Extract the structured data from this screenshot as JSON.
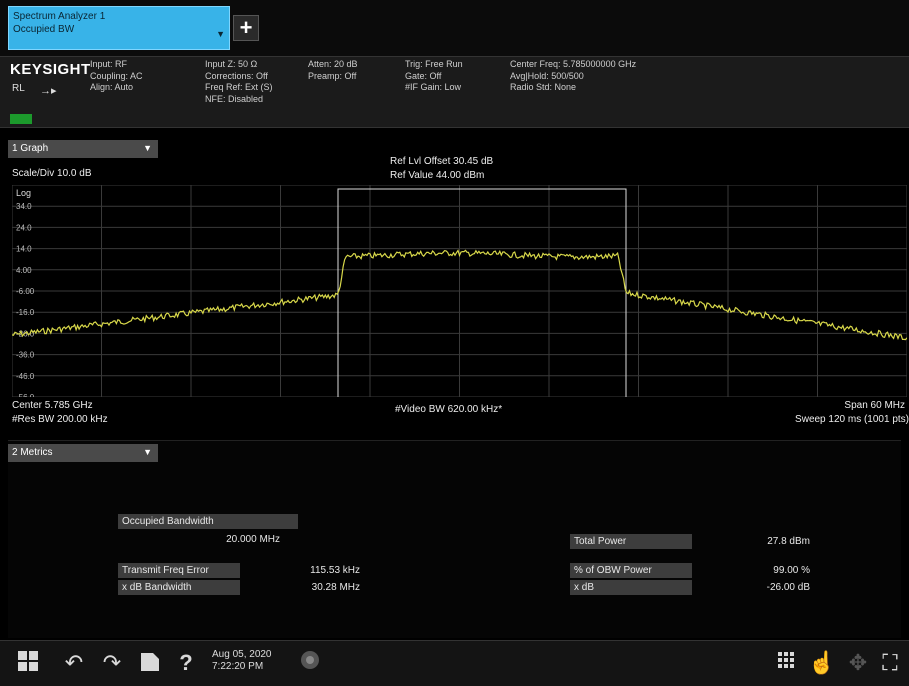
{
  "window": {
    "tab_line1": "Spectrum Analyzer 1",
    "tab_line2": "Occupied BW",
    "add_label": "+"
  },
  "settings": {
    "brand": "KEYSIGHT",
    "rl": "RL",
    "col1": [
      "Input: RF",
      "Coupling: AC",
      "Align: Auto"
    ],
    "col2": [
      "Input Z: 50 Ω",
      "Corrections: Off",
      "Freq Ref: Ext (S)",
      "NFE: Disabled"
    ],
    "col3": [
      "Atten: 20 dB",
      "Preamp: Off"
    ],
    "col4": [
      "Trig: Free Run",
      "Gate: Off",
      "#IF Gain: Low"
    ],
    "col5": [
      "Center Freq: 5.785000000 GHz",
      "Avg|Hold: 500/500",
      "Radio Std: None"
    ]
  },
  "graph": {
    "header": "1 Graph",
    "scale": "Scale/Div 10.0 dB",
    "ref_offset": "Ref Lvl Offset 30.45 dB",
    "ref_value": "Ref Value 44.00 dBm",
    "log_label": "Log",
    "y_ticks": [
      "34.0",
      "24.0",
      "14.0",
      "4.00",
      "-6.00",
      "-16.0",
      "-26.0",
      "-36.0",
      "-46.0",
      "-56.0"
    ],
    "center": "Center 5.785 GHz",
    "res_bw": "#Res BW 200.00 kHz",
    "video_bw": "#Video BW 620.00 kHz*",
    "span": "Span 60 MHz",
    "sweep": "Sweep 120 ms (1001 pts)"
  },
  "metrics": {
    "header": "2 Metrics",
    "occupied_bw_label": "Occupied Bandwidth",
    "occupied_bw_value": "20.000 MHz",
    "transmit_freq_error_label": "Transmit Freq Error",
    "transmit_freq_error_value": "115.53 kHz",
    "x_db_bw_label": "x dB Bandwidth",
    "x_db_bw_value": "30.28 MHz",
    "total_power_label": "Total Power",
    "total_power_value": "27.8 dBm",
    "obw_power_label": "% of OBW Power",
    "obw_power_value": "99.00 %",
    "x_db_label": "x dB",
    "x_db_value": "-26.00 dB"
  },
  "taskbar": {
    "date": "Aug 05, 2020",
    "time": "7:22:20 PM"
  },
  "colors": {
    "trace": "#d8d84a",
    "tab": "#38b3e8",
    "grid": "#3a3a3a"
  }
}
